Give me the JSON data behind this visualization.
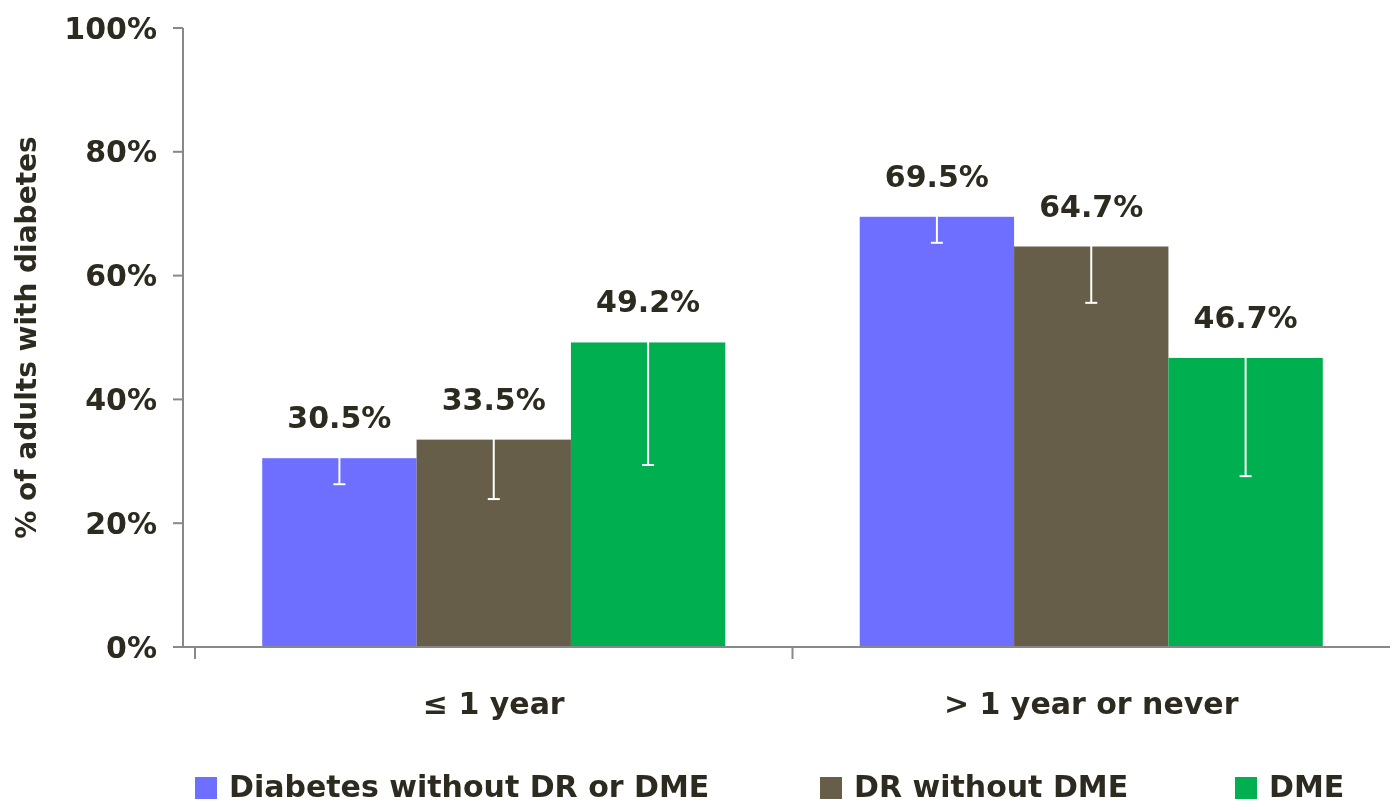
{
  "chart_data": {
    "type": "bar",
    "ylabel": "% of adults with diabetes",
    "categories": [
      "≤ 1 year",
      "> 1 year or never"
    ],
    "series": [
      {
        "name": "Diabetes without DR or DME",
        "color": "#6e6eff",
        "values": [
          30.5,
          69.5
        ],
        "errors": [
          4.2,
          4.2
        ],
        "value_labels": [
          "30.5%",
          "69.5%"
        ]
      },
      {
        "name": "DR without DME",
        "color": "#665e49",
        "values": [
          33.5,
          64.7
        ],
        "errors": [
          9.6,
          9.1
        ],
        "value_labels": [
          "33.5%",
          "64.7%"
        ]
      },
      {
        "name": "DME",
        "color": "#00b050",
        "values": [
          49.2,
          46.7
        ],
        "errors": [
          19.8,
          19.1
        ],
        "value_labels": [
          "49.2%",
          "46.7%"
        ]
      }
    ],
    "ylim": [
      0,
      100
    ],
    "yticks": [
      {
        "value": 0,
        "label": "0%"
      },
      {
        "value": 20,
        "label": "20%"
      },
      {
        "value": 40,
        "label": "40%"
      },
      {
        "value": 60,
        "label": "60%"
      },
      {
        "value": 80,
        "label": "80%"
      },
      {
        "value": 100,
        "label": "100%"
      }
    ],
    "grid": false,
    "legend": "bottom"
  }
}
